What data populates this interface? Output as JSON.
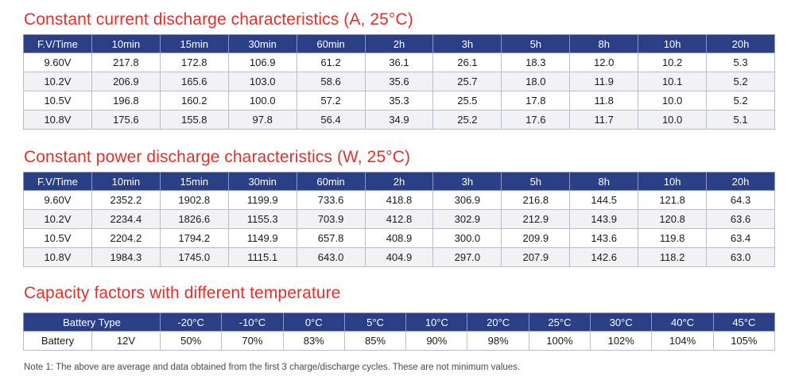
{
  "current": {
    "title": "Constant current discharge characteristics (A, 25°C)",
    "headers": [
      "F.V/Time",
      "10min",
      "15min",
      "30min",
      "60min",
      "2h",
      "3h",
      "5h",
      "8h",
      "10h",
      "20h"
    ],
    "rows": [
      [
        "9.60V",
        "217.8",
        "172.8",
        "106.9",
        "61.2",
        "36.1",
        "26.1",
        "18.3",
        "12.0",
        "10.2",
        "5.3"
      ],
      [
        "10.2V",
        "206.9",
        "165.6",
        "103.0",
        "58.6",
        "35.6",
        "25.7",
        "18.0",
        "11.9",
        "10.1",
        "5.2"
      ],
      [
        "10.5V",
        "196.8",
        "160.2",
        "100.0",
        "57.2",
        "35.3",
        "25.5",
        "17.8",
        "11.8",
        "10.0",
        "5.2"
      ],
      [
        "10.8V",
        "175.6",
        "155.8",
        "97.8",
        "56.4",
        "34.9",
        "25.2",
        "17.6",
        "11.7",
        "10.0",
        "5.1"
      ]
    ]
  },
  "power": {
    "title": "Constant power discharge characteristics (W, 25°C)",
    "headers": [
      "F.V/Time",
      "10min",
      "15min",
      "30min",
      "60min",
      "2h",
      "3h",
      "5h",
      "8h",
      "10h",
      "20h"
    ],
    "rows": [
      [
        "9.60V",
        "2352.2",
        "1902.8",
        "1199.9",
        "733.6",
        "418.8",
        "306.9",
        "216.8",
        "144.5",
        "121.8",
        "64.3"
      ],
      [
        "10.2V",
        "2234.4",
        "1826.6",
        "1155.3",
        "703.9",
        "412.8",
        "302.9",
        "212.9",
        "143.9",
        "120.8",
        "63.6"
      ],
      [
        "10.5V",
        "2204.2",
        "1794.2",
        "1149.9",
        "657.8",
        "408.9",
        "300.0",
        "209.9",
        "143.6",
        "119.8",
        "63.4"
      ],
      [
        "10.8V",
        "1984.3",
        "1745.0",
        "1115.1",
        "643.0",
        "404.9",
        "297.0",
        "207.9",
        "142.6",
        "118.2",
        "63.0"
      ]
    ]
  },
  "capacity": {
    "title": "Capacity factors with different temperature",
    "battery_type_header": "Battery Type",
    "temperatures": [
      "-20°C",
      "-10°C",
      "0°C",
      "5°C",
      "10°C",
      "20°C",
      "25°C",
      "30°C",
      "40°C",
      "45°C"
    ],
    "row_label": "Battery",
    "row_type": "12V",
    "factors": [
      "50%",
      "70%",
      "83%",
      "85%",
      "90%",
      "98%",
      "100%",
      "102%",
      "104%",
      "105%"
    ]
  },
  "note": "Note 1: The above are average and data obtained from the first 3 charge/discharge cycles. These are not minimum values."
}
